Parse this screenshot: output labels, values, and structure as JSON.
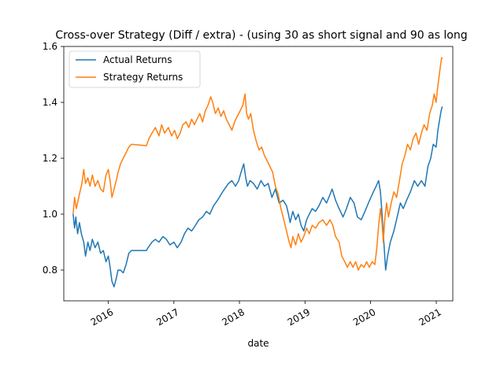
{
  "chart_data": {
    "type": "line",
    "title": "Cross-over Strategy (Diff / extra) -  (using 30 as short signal and 90 as long",
    "xlabel": "date",
    "ylabel": "",
    "x_axis_type": "date",
    "xlim": [
      "2015-04-29",
      "2021-04-03"
    ],
    "ylim": [
      0.69,
      1.6
    ],
    "x_ticks": [
      "2016",
      "2017",
      "2018",
      "2019",
      "2020",
      "2021"
    ],
    "x_tick_dates": [
      "2016-01-01",
      "2017-01-01",
      "2018-01-01",
      "2019-01-01",
      "2020-01-01",
      "2021-01-01"
    ],
    "y_ticks": [
      "0.8",
      "1.0",
      "1.2",
      "1.4",
      "1.6"
    ],
    "y_tick_values": [
      0.8,
      1.0,
      1.2,
      1.4,
      1.6
    ],
    "grid": false,
    "legend": {
      "position": "upper-left"
    },
    "series": [
      {
        "name": "Actual Returns",
        "color": "#1f77b4",
        "points": [
          [
            "2015-06-20",
            1.0
          ],
          [
            "2015-06-28",
            0.95
          ],
          [
            "2015-07-05",
            0.99
          ],
          [
            "2015-07-15",
            0.93
          ],
          [
            "2015-07-25",
            0.97
          ],
          [
            "2015-08-05",
            0.93
          ],
          [
            "2015-08-18",
            0.9
          ],
          [
            "2015-08-28",
            0.85
          ],
          [
            "2015-09-10",
            0.9
          ],
          [
            "2015-09-22",
            0.87
          ],
          [
            "2015-10-05",
            0.91
          ],
          [
            "2015-10-20",
            0.88
          ],
          [
            "2015-11-05",
            0.9
          ],
          [
            "2015-11-20",
            0.86
          ],
          [
            "2015-12-05",
            0.87
          ],
          [
            "2015-12-20",
            0.83
          ],
          [
            "2016-01-02",
            0.85
          ],
          [
            "2016-01-12",
            0.81
          ],
          [
            "2016-01-22",
            0.76
          ],
          [
            "2016-02-03",
            0.74
          ],
          [
            "2016-02-15",
            0.77
          ],
          [
            "2016-02-25",
            0.8
          ],
          [
            "2016-03-10",
            0.8
          ],
          [
            "2016-03-25",
            0.79
          ],
          [
            "2016-04-10",
            0.82
          ],
          [
            "2016-04-25",
            0.86
          ],
          [
            "2016-05-10",
            0.87
          ],
          [
            "2016-07-01",
            0.87
          ],
          [
            "2016-08-01",
            0.87
          ],
          [
            "2016-08-10",
            0.88
          ],
          [
            "2016-09-01",
            0.9
          ],
          [
            "2016-09-20",
            0.91
          ],
          [
            "2016-10-10",
            0.9
          ],
          [
            "2016-11-01",
            0.92
          ],
          [
            "2016-11-20",
            0.91
          ],
          [
            "2016-12-10",
            0.89
          ],
          [
            "2017-01-01",
            0.9
          ],
          [
            "2017-01-20",
            0.88
          ],
          [
            "2017-02-10",
            0.9
          ],
          [
            "2017-03-01",
            0.93
          ],
          [
            "2017-03-20",
            0.95
          ],
          [
            "2017-04-10",
            0.94
          ],
          [
            "2017-05-01",
            0.96
          ],
          [
            "2017-05-20",
            0.98
          ],
          [
            "2017-06-10",
            0.99
          ],
          [
            "2017-07-01",
            1.01
          ],
          [
            "2017-07-20",
            1.0
          ],
          [
            "2017-08-10",
            1.03
          ],
          [
            "2017-09-01",
            1.05
          ],
          [
            "2017-09-20",
            1.07
          ],
          [
            "2017-10-10",
            1.09
          ],
          [
            "2017-11-01",
            1.11
          ],
          [
            "2017-11-20",
            1.12
          ],
          [
            "2017-12-10",
            1.1
          ],
          [
            "2017-12-28",
            1.12
          ],
          [
            "2018-01-10",
            1.15
          ],
          [
            "2018-01-25",
            1.18
          ],
          [
            "2018-02-05",
            1.13
          ],
          [
            "2018-02-15",
            1.1
          ],
          [
            "2018-03-01",
            1.12
          ],
          [
            "2018-03-20",
            1.11
          ],
          [
            "2018-04-10",
            1.09
          ],
          [
            "2018-05-01",
            1.12
          ],
          [
            "2018-05-20",
            1.1
          ],
          [
            "2018-06-10",
            1.11
          ],
          [
            "2018-07-01",
            1.06
          ],
          [
            "2018-07-20",
            1.09
          ],
          [
            "2018-08-10",
            1.04
          ],
          [
            "2018-09-01",
            1.05
          ],
          [
            "2018-09-20",
            1.03
          ],
          [
            "2018-10-01",
            1.0
          ],
          [
            "2018-10-10",
            0.97
          ],
          [
            "2018-10-25",
            1.01
          ],
          [
            "2018-11-10",
            0.98
          ],
          [
            "2018-11-25",
            1.0
          ],
          [
            "2018-12-10",
            0.96
          ],
          [
            "2018-12-25",
            0.94
          ],
          [
            "2019-01-10",
            0.98
          ],
          [
            "2019-01-25",
            1.0
          ],
          [
            "2019-02-10",
            1.02
          ],
          [
            "2019-03-01",
            1.01
          ],
          [
            "2019-03-20",
            1.03
          ],
          [
            "2019-04-10",
            1.06
          ],
          [
            "2019-05-01",
            1.04
          ],
          [
            "2019-05-20",
            1.07
          ],
          [
            "2019-06-01",
            1.09
          ],
          [
            "2019-06-20",
            1.05
          ],
          [
            "2019-07-10",
            1.02
          ],
          [
            "2019-08-01",
            0.99
          ],
          [
            "2019-08-20",
            1.02
          ],
          [
            "2019-09-10",
            1.06
          ],
          [
            "2019-10-01",
            1.04
          ],
          [
            "2019-10-20",
            0.99
          ],
          [
            "2019-11-10",
            0.98
          ],
          [
            "2019-12-01",
            1.01
          ],
          [
            "2019-12-20",
            1.04
          ],
          [
            "2020-01-10",
            1.07
          ],
          [
            "2020-02-01",
            1.1
          ],
          [
            "2020-02-15",
            1.12
          ],
          [
            "2020-02-25",
            1.08
          ],
          [
            "2020-03-05",
            1.0
          ],
          [
            "2020-03-15",
            0.9
          ],
          [
            "2020-03-25",
            0.8
          ],
          [
            "2020-04-05",
            0.85
          ],
          [
            "2020-04-20",
            0.9
          ],
          [
            "2020-05-10",
            0.94
          ],
          [
            "2020-06-01",
            1.0
          ],
          [
            "2020-06-15",
            1.04
          ],
          [
            "2020-07-01",
            1.02
          ],
          [
            "2020-07-20",
            1.05
          ],
          [
            "2020-08-10",
            1.08
          ],
          [
            "2020-09-01",
            1.12
          ],
          [
            "2020-09-20",
            1.1
          ],
          [
            "2020-10-10",
            1.12
          ],
          [
            "2020-10-30",
            1.1
          ],
          [
            "2020-11-15",
            1.17
          ],
          [
            "2020-12-01",
            1.2
          ],
          [
            "2020-12-15",
            1.25
          ],
          [
            "2020-12-31",
            1.24
          ],
          [
            "2021-01-10",
            1.3
          ],
          [
            "2021-01-20",
            1.34
          ],
          [
            "2021-01-28",
            1.37
          ],
          [
            "2021-02-03",
            1.385
          ]
        ]
      },
      {
        "name": "Strategy Returns",
        "color": "#ff7f0e",
        "points": [
          [
            "2015-06-20",
            1.0
          ],
          [
            "2015-06-28",
            1.06
          ],
          [
            "2015-07-08",
            1.02
          ],
          [
            "2015-07-18",
            1.05
          ],
          [
            "2015-07-28",
            1.08
          ],
          [
            "2015-08-08",
            1.11
          ],
          [
            "2015-08-18",
            1.16
          ],
          [
            "2015-08-28",
            1.11
          ],
          [
            "2015-09-10",
            1.13
          ],
          [
            "2015-09-22",
            1.1
          ],
          [
            "2015-10-05",
            1.14
          ],
          [
            "2015-10-20",
            1.1
          ],
          [
            "2015-11-05",
            1.12
          ],
          [
            "2015-11-20",
            1.09
          ],
          [
            "2015-12-05",
            1.08
          ],
          [
            "2015-12-20",
            1.14
          ],
          [
            "2016-01-02",
            1.16
          ],
          [
            "2016-01-12",
            1.12
          ],
          [
            "2016-01-22",
            1.06
          ],
          [
            "2016-02-03",
            1.09
          ],
          [
            "2016-02-15",
            1.12
          ],
          [
            "2016-02-25",
            1.15
          ],
          [
            "2016-03-10",
            1.18
          ],
          [
            "2016-03-25",
            1.2
          ],
          [
            "2016-04-10",
            1.22
          ],
          [
            "2016-04-25",
            1.24
          ],
          [
            "2016-05-10",
            1.25
          ],
          [
            "2016-08-01",
            1.245
          ],
          [
            "2016-08-15",
            1.27
          ],
          [
            "2016-09-01",
            1.29
          ],
          [
            "2016-09-20",
            1.31
          ],
          [
            "2016-10-10",
            1.28
          ],
          [
            "2016-10-25",
            1.32
          ],
          [
            "2016-11-10",
            1.29
          ],
          [
            "2016-12-01",
            1.31
          ],
          [
            "2016-12-20",
            1.28
          ],
          [
            "2017-01-05",
            1.3
          ],
          [
            "2017-01-20",
            1.27
          ],
          [
            "2017-02-05",
            1.29
          ],
          [
            "2017-02-20",
            1.32
          ],
          [
            "2017-03-10",
            1.33
          ],
          [
            "2017-03-25",
            1.31
          ],
          [
            "2017-04-10",
            1.34
          ],
          [
            "2017-04-25",
            1.32
          ],
          [
            "2017-05-10",
            1.34
          ],
          [
            "2017-05-25",
            1.36
          ],
          [
            "2017-06-10",
            1.33
          ],
          [
            "2017-06-25",
            1.37
          ],
          [
            "2017-07-10",
            1.39
          ],
          [
            "2017-07-25",
            1.42
          ],
          [
            "2017-08-05",
            1.4
          ],
          [
            "2017-08-20",
            1.36
          ],
          [
            "2017-09-05",
            1.38
          ],
          [
            "2017-09-20",
            1.35
          ],
          [
            "2017-10-05",
            1.37
          ],
          [
            "2017-10-20",
            1.34
          ],
          [
            "2017-11-05",
            1.32
          ],
          [
            "2017-11-20",
            1.3
          ],
          [
            "2017-12-05",
            1.33
          ],
          [
            "2017-12-20",
            1.35
          ],
          [
            "2018-01-05",
            1.37
          ],
          [
            "2018-01-20",
            1.39
          ],
          [
            "2018-02-01",
            1.43
          ],
          [
            "2018-02-10",
            1.36
          ],
          [
            "2018-02-20",
            1.34
          ],
          [
            "2018-03-05",
            1.36
          ],
          [
            "2018-03-20",
            1.3
          ],
          [
            "2018-04-05",
            1.26
          ],
          [
            "2018-04-20",
            1.23
          ],
          [
            "2018-05-05",
            1.24
          ],
          [
            "2018-05-20",
            1.21
          ],
          [
            "2018-06-05",
            1.19
          ],
          [
            "2018-06-20",
            1.17
          ],
          [
            "2018-07-05",
            1.15
          ],
          [
            "2018-07-20",
            1.1
          ],
          [
            "2018-08-05",
            1.07
          ],
          [
            "2018-08-20",
            1.02
          ],
          [
            "2018-09-05",
            0.98
          ],
          [
            "2018-09-20",
            0.94
          ],
          [
            "2018-10-05",
            0.9
          ],
          [
            "2018-10-15",
            0.88
          ],
          [
            "2018-10-25",
            0.92
          ],
          [
            "2018-11-10",
            0.89
          ],
          [
            "2018-11-25",
            0.93
          ],
          [
            "2018-12-10",
            0.9
          ],
          [
            "2018-12-25",
            0.92
          ],
          [
            "2019-01-10",
            0.95
          ],
          [
            "2019-01-25",
            0.93
          ],
          [
            "2019-02-10",
            0.96
          ],
          [
            "2019-03-01",
            0.95
          ],
          [
            "2019-03-20",
            0.97
          ],
          [
            "2019-04-10",
            0.98
          ],
          [
            "2019-05-01",
            0.96
          ],
          [
            "2019-05-20",
            0.98
          ],
          [
            "2019-06-05",
            0.96
          ],
          [
            "2019-06-20",
            0.92
          ],
          [
            "2019-07-10",
            0.9
          ],
          [
            "2019-07-25",
            0.85
          ],
          [
            "2019-08-10",
            0.83
          ],
          [
            "2019-08-25",
            0.81
          ],
          [
            "2019-09-10",
            0.83
          ],
          [
            "2019-09-25",
            0.81
          ],
          [
            "2019-10-10",
            0.83
          ],
          [
            "2019-10-25",
            0.8
          ],
          [
            "2019-11-10",
            0.82
          ],
          [
            "2019-11-25",
            0.81
          ],
          [
            "2019-12-10",
            0.83
          ],
          [
            "2019-12-25",
            0.81
          ],
          [
            "2020-01-10",
            0.83
          ],
          [
            "2020-01-25",
            0.82
          ],
          [
            "2020-02-05",
            0.88
          ],
          [
            "2020-02-15",
            0.96
          ],
          [
            "2020-02-25",
            1.02
          ],
          [
            "2020-03-05",
            0.97
          ],
          [
            "2020-03-12",
            0.9
          ],
          [
            "2020-03-20",
            0.98
          ],
          [
            "2020-03-30",
            1.04
          ],
          [
            "2020-04-10",
            0.99
          ],
          [
            "2020-04-25",
            1.04
          ],
          [
            "2020-05-10",
            1.08
          ],
          [
            "2020-05-25",
            1.06
          ],
          [
            "2020-06-10",
            1.12
          ],
          [
            "2020-06-25",
            1.18
          ],
          [
            "2020-07-10",
            1.21
          ],
          [
            "2020-07-25",
            1.25
          ],
          [
            "2020-08-10",
            1.23
          ],
          [
            "2020-08-25",
            1.27
          ],
          [
            "2020-09-10",
            1.29
          ],
          [
            "2020-09-25",
            1.25
          ],
          [
            "2020-10-10",
            1.29
          ],
          [
            "2020-10-25",
            1.32
          ],
          [
            "2020-11-10",
            1.3
          ],
          [
            "2020-11-25",
            1.36
          ],
          [
            "2020-12-10",
            1.39
          ],
          [
            "2020-12-20",
            1.43
          ],
          [
            "2020-12-31",
            1.4
          ],
          [
            "2021-01-08",
            1.45
          ],
          [
            "2021-01-16",
            1.49
          ],
          [
            "2021-01-24",
            1.53
          ],
          [
            "2021-01-31",
            1.56
          ],
          [
            "2021-02-03",
            1.555
          ]
        ]
      }
    ]
  }
}
